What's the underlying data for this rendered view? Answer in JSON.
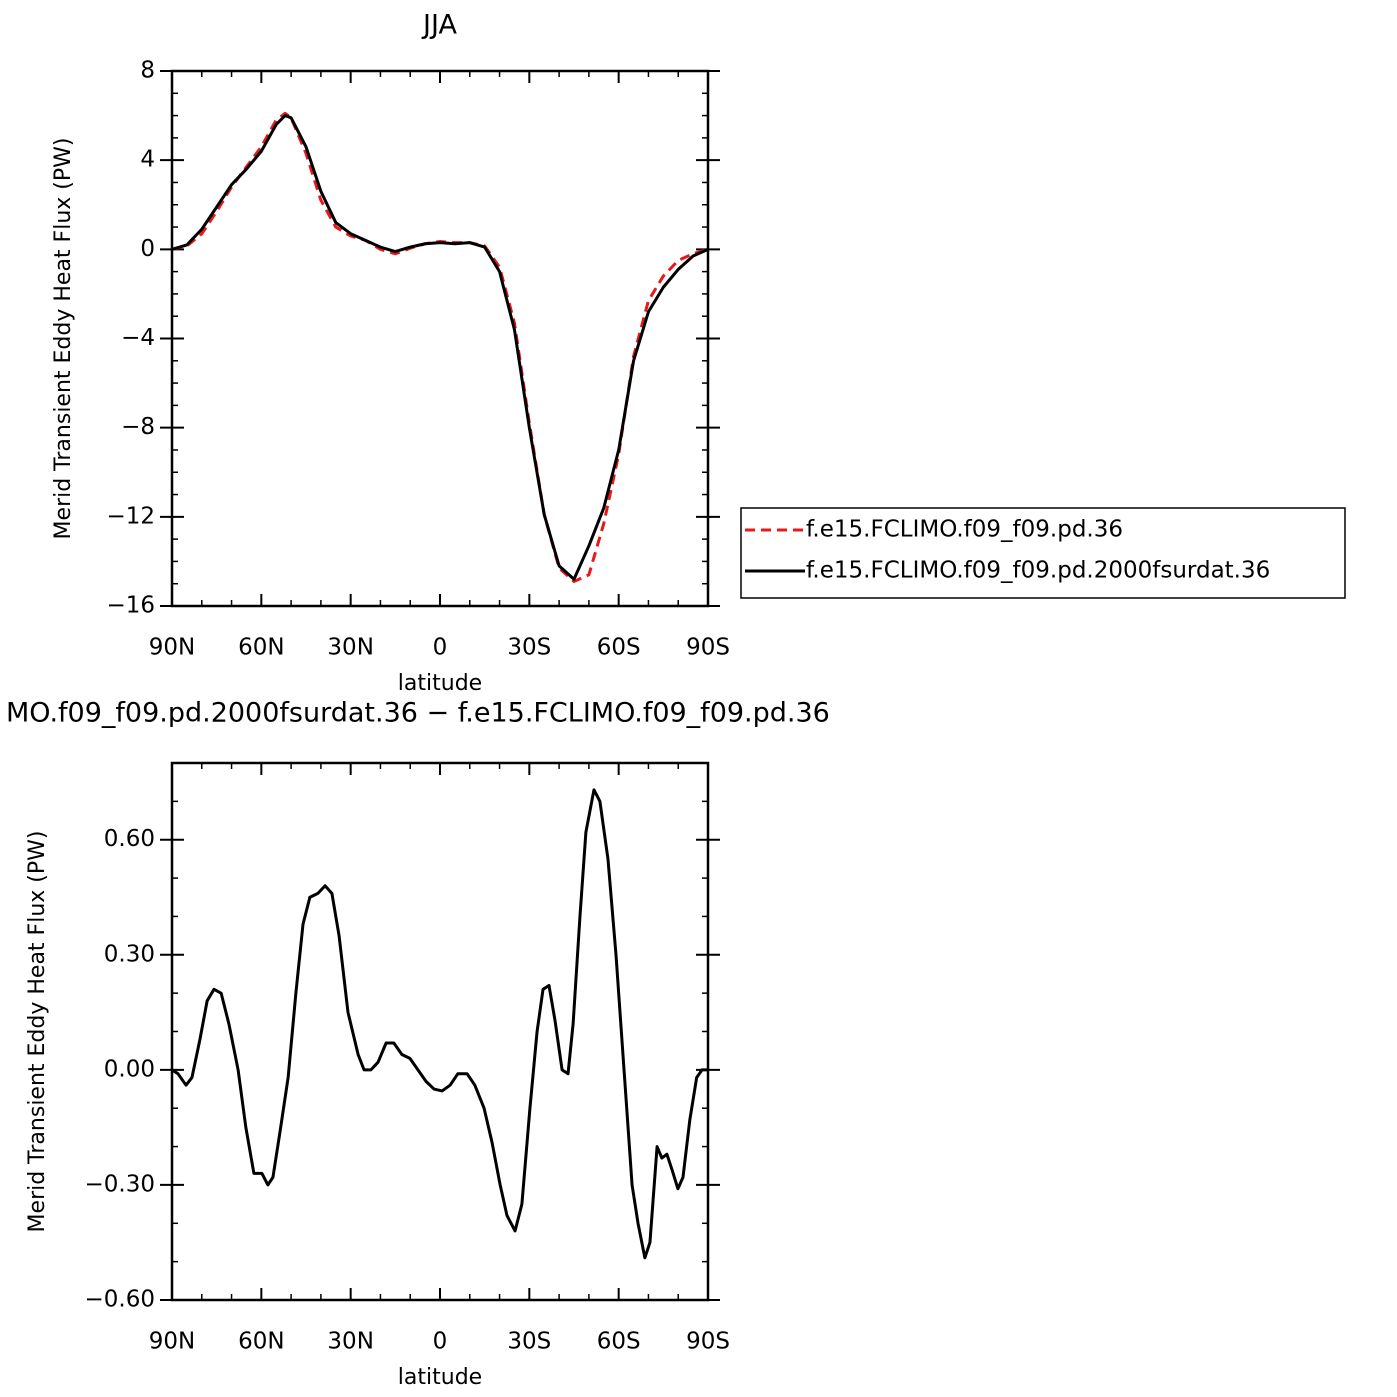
{
  "chart_data": [
    {
      "type": "line",
      "title": "JJA",
      "x_label": "latitude",
      "y_label": "Merid Transient Eddy Heat Flux (PW)",
      "xlim": [
        90,
        -90
      ],
      "ylim": [
        -16,
        8
      ],
      "xticks": [
        {
          "value": 90,
          "label": "90N"
        },
        {
          "value": 60,
          "label": "60N"
        },
        {
          "value": 30,
          "label": "30N"
        },
        0,
        {
          "value": -30,
          "label": "30S"
        },
        {
          "value": -60,
          "label": "60S"
        },
        {
          "value": -90,
          "label": "90S"
        }
      ],
      "xminorticks": [
        80,
        70,
        50,
        40,
        20,
        10,
        -10,
        -20,
        -40,
        -50,
        -70,
        -80
      ],
      "yticks": [
        8,
        4,
        0,
        {
          "value": -4,
          "label": "−4"
        },
        {
          "value": -8,
          "label": "−8"
        },
        {
          "value": -12,
          "label": "−12"
        },
        {
          "value": -16,
          "label": "−16"
        }
      ],
      "yminorticks": [
        7,
        6,
        5,
        3,
        2,
        1,
        -1,
        -2,
        -3,
        -5,
        -6,
        -7,
        -9,
        -10,
        -11,
        -13,
        -14,
        -15
      ],
      "legend": "right",
      "x": [
        90,
        85,
        80,
        75,
        70,
        65,
        60,
        55,
        52,
        50,
        45,
        40,
        35,
        30,
        25,
        20,
        15,
        10,
        5,
        0,
        -5,
        -10,
        -15,
        -20,
        -25,
        -30,
        -35,
        -40,
        -45,
        -50,
        -55,
        -60,
        -65,
        -70,
        -75,
        -80,
        -85,
        -90
      ],
      "series": [
        {
          "name": "f.e15.FCLIMO.f09_f09.pd.36",
          "color": "#e8191b",
          "dash": true,
          "values": [
            0,
            0.15,
            0.7,
            1.7,
            2.8,
            3.7,
            4.6,
            5.8,
            6.1,
            5.9,
            4.3,
            2.2,
            1.0,
            0.6,
            0.4,
            0.0,
            -0.2,
            0.05,
            0.25,
            0.35,
            0.3,
            0.3,
            0.15,
            -0.8,
            -3.3,
            -7.8,
            -11.9,
            -14.3,
            -14.9,
            -14.6,
            -12.3,
            -9.2,
            -4.8,
            -2.3,
            -1.2,
            -0.5,
            -0.2,
            0
          ]
        },
        {
          "name": "f.e15.FCLIMO.f09_f09.pd.2000fsurdat.36",
          "color": "#000000",
          "dash": false,
          "values": [
            0,
            0.2,
            0.9,
            1.9,
            2.9,
            3.6,
            4.4,
            5.6,
            6.0,
            5.9,
            4.6,
            2.6,
            1.2,
            0.7,
            0.4,
            0.1,
            -0.1,
            0.1,
            0.25,
            0.3,
            0.25,
            0.3,
            0.1,
            -1.0,
            -3.6,
            -8.0,
            -11.9,
            -14.2,
            -14.8,
            -13.3,
            -11.6,
            -9.0,
            -5.0,
            -2.8,
            -1.7,
            -0.9,
            -0.3,
            0
          ]
        }
      ]
    },
    {
      "type": "line",
      "title": "MO.f09_f09.pd.2000fsurdat.36 − f.e15.FCLIMO.f09_f09.pd.36",
      "x_label": "latitude",
      "y_label": "Merid Transient Eddy Heat Flux (PW)",
      "xlim": [
        90,
        -90
      ],
      "ylim": [
        -0.6,
        0.8
      ],
      "xticks": [
        {
          "value": 90,
          "label": "90N"
        },
        {
          "value": 60,
          "label": "60N"
        },
        {
          "value": 30,
          "label": "30N"
        },
        0,
        {
          "value": -30,
          "label": "30S"
        },
        {
          "value": -60,
          "label": "60S"
        },
        {
          "value": -90,
          "label": "90S"
        }
      ],
      "xminorticks": [
        80,
        70,
        50,
        40,
        20,
        10,
        -10,
        -20,
        -40,
        -50,
        -70,
        -80
      ],
      "yticks": [
        {
          "value": 0.6,
          "label": "0.60"
        },
        {
          "value": 0.3,
          "label": "0.30"
        },
        {
          "value": 0,
          "label": "0.00"
        },
        {
          "value": -0.3,
          "label": "−0.30"
        },
        {
          "value": -0.6,
          "label": "−0.60"
        }
      ],
      "yminorticks": [
        0.7,
        0.5,
        0.4,
        0.2,
        0.1,
        -0.1,
        -0.2,
        -0.4,
        -0.5
      ],
      "color": "#000000",
      "x": [
        90,
        88,
        85.3,
        83.3,
        80.6,
        78.2,
        75.9,
        73.5,
        70.9,
        67.8,
        65.2,
        62.5,
        59.8,
        57.8,
        56.1,
        53.7,
        51.0,
        48.4,
        46.0,
        43.7,
        41.0,
        38.6,
        36.3,
        33.9,
        30.9,
        27.5,
        25.5,
        23.2,
        20.8,
        18.1,
        15.5,
        12.8,
        10.1,
        7.4,
        4.7,
        2.0,
        -0.7,
        -3.4,
        -6.0,
        -9.1,
        -11.7,
        -14.8,
        -17.5,
        -20.2,
        -22.5,
        -25.2,
        -27.5,
        -30.2,
        -32.6,
        -34.6,
        -36.6,
        -38.6,
        -41.0,
        -43.0,
        -44.7,
        -47.0,
        -49.0,
        -51.7,
        -53.7,
        -56.4,
        -59.1,
        -61.8,
        -64.5,
        -66.5,
        -68.8,
        -70.5,
        -72.9,
        -74.5,
        -76.2,
        -77.9,
        -79.9,
        -81.6,
        -83.9,
        -86.2,
        -88.0,
        -90
      ],
      "values": [
        0.0,
        -0.01,
        -0.04,
        -0.02,
        0.08,
        0.18,
        0.21,
        0.2,
        0.12,
        0.0,
        -0.15,
        -0.27,
        -0.27,
        -0.3,
        -0.28,
        -0.16,
        -0.02,
        0.2,
        0.38,
        0.45,
        0.46,
        0.48,
        0.46,
        0.35,
        0.15,
        0.04,
        0.0,
        0.0,
        0.02,
        0.07,
        0.07,
        0.04,
        0.03,
        0.0,
        -0.03,
        -0.05,
        -0.055,
        -0.04,
        -0.01,
        -0.01,
        -0.04,
        -0.1,
        -0.19,
        -0.3,
        -0.38,
        -0.42,
        -0.35,
        -0.1,
        0.1,
        0.21,
        0.22,
        0.13,
        0.0,
        -0.01,
        0.12,
        0.4,
        0.62,
        0.73,
        0.7,
        0.55,
        0.3,
        0.0,
        -0.3,
        -0.4,
        -0.49,
        -0.45,
        -0.2,
        -0.23,
        -0.22,
        -0.26,
        -0.31,
        -0.28,
        -0.13,
        -0.02,
        0.0,
        0.0
      ]
    }
  ]
}
